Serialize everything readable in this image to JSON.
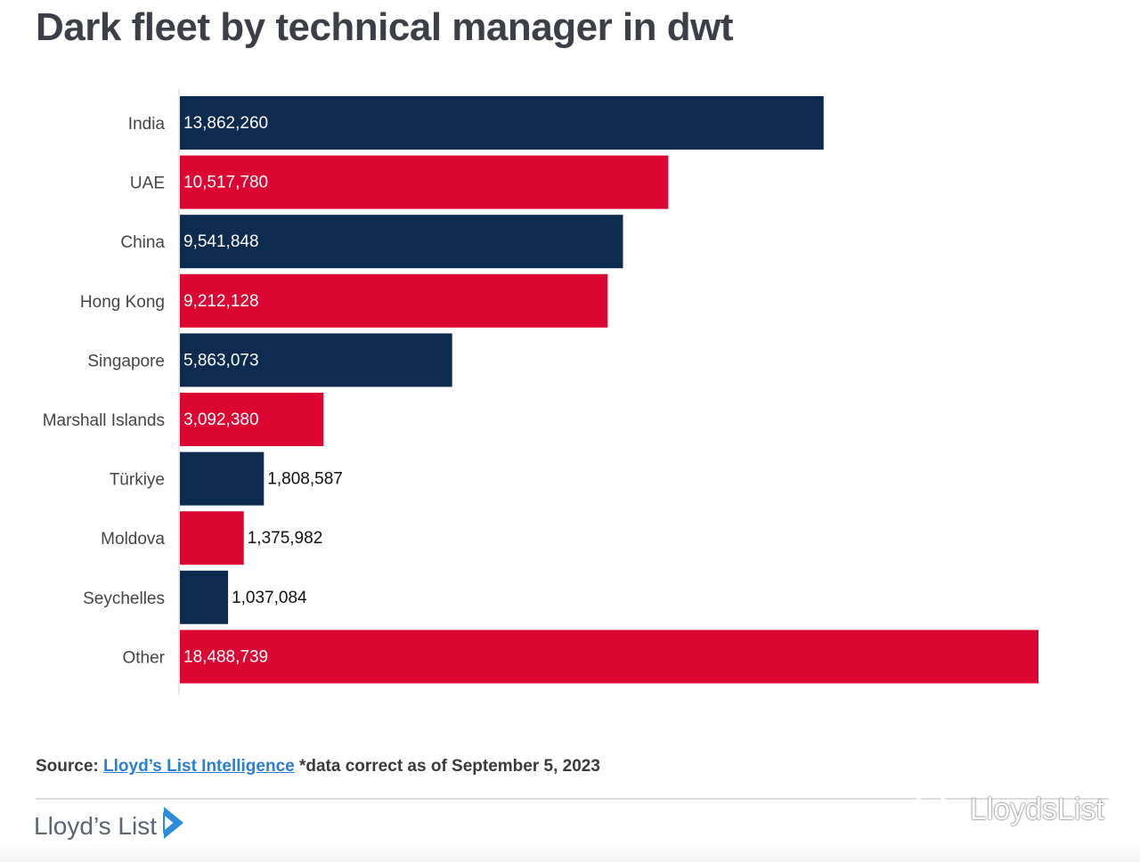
{
  "header": {
    "title": "Dark fleet by technical manager in dwt"
  },
  "chart_data": {
    "type": "bar",
    "orientation": "horizontal",
    "title": "Dark fleet by technical manager in dwt",
    "categories": [
      "India",
      "UAE",
      "China",
      "Hong Kong",
      "Singapore",
      "Marshall Islands",
      "Türkiye",
      "Moldova",
      "Seychelles",
      "Other"
    ],
    "values": [
      13862260,
      10517780,
      9541848,
      9212128,
      5863073,
      3092380,
      1808587,
      1375982,
      1037084,
      18488739
    ],
    "value_labels": [
      "13,862,260",
      "10,517,780",
      "9,541,848",
      "9,212,128",
      "5,863,073",
      "3,092,380",
      "1,808,587",
      "1,375,982",
      "1,037,084",
      "18,488,739"
    ],
    "bar_colors": [
      "#0d2b4e",
      "#dc0632",
      "#0d2b4e",
      "#dc0632",
      "#0d2b4e",
      "#dc0632",
      "#0d2b4e",
      "#dc0632",
      "#0d2b4e",
      "#dc0632"
    ],
    "xlim": [
      0,
      18488739
    ],
    "grid": false,
    "xlabel": "",
    "ylabel": ""
  },
  "footer": {
    "source_prefix": "Source:",
    "source_link": "Lloyd’s List Intelligence",
    "source_note": "*data correct as of September 5, 2023",
    "brand": "Lloyd’s List",
    "watermark": "LloydsList"
  },
  "colors": {
    "navy": "#0d2b4e",
    "red": "#dc0632",
    "link": "#2a7fd4",
    "title": "#3c3f47"
  }
}
